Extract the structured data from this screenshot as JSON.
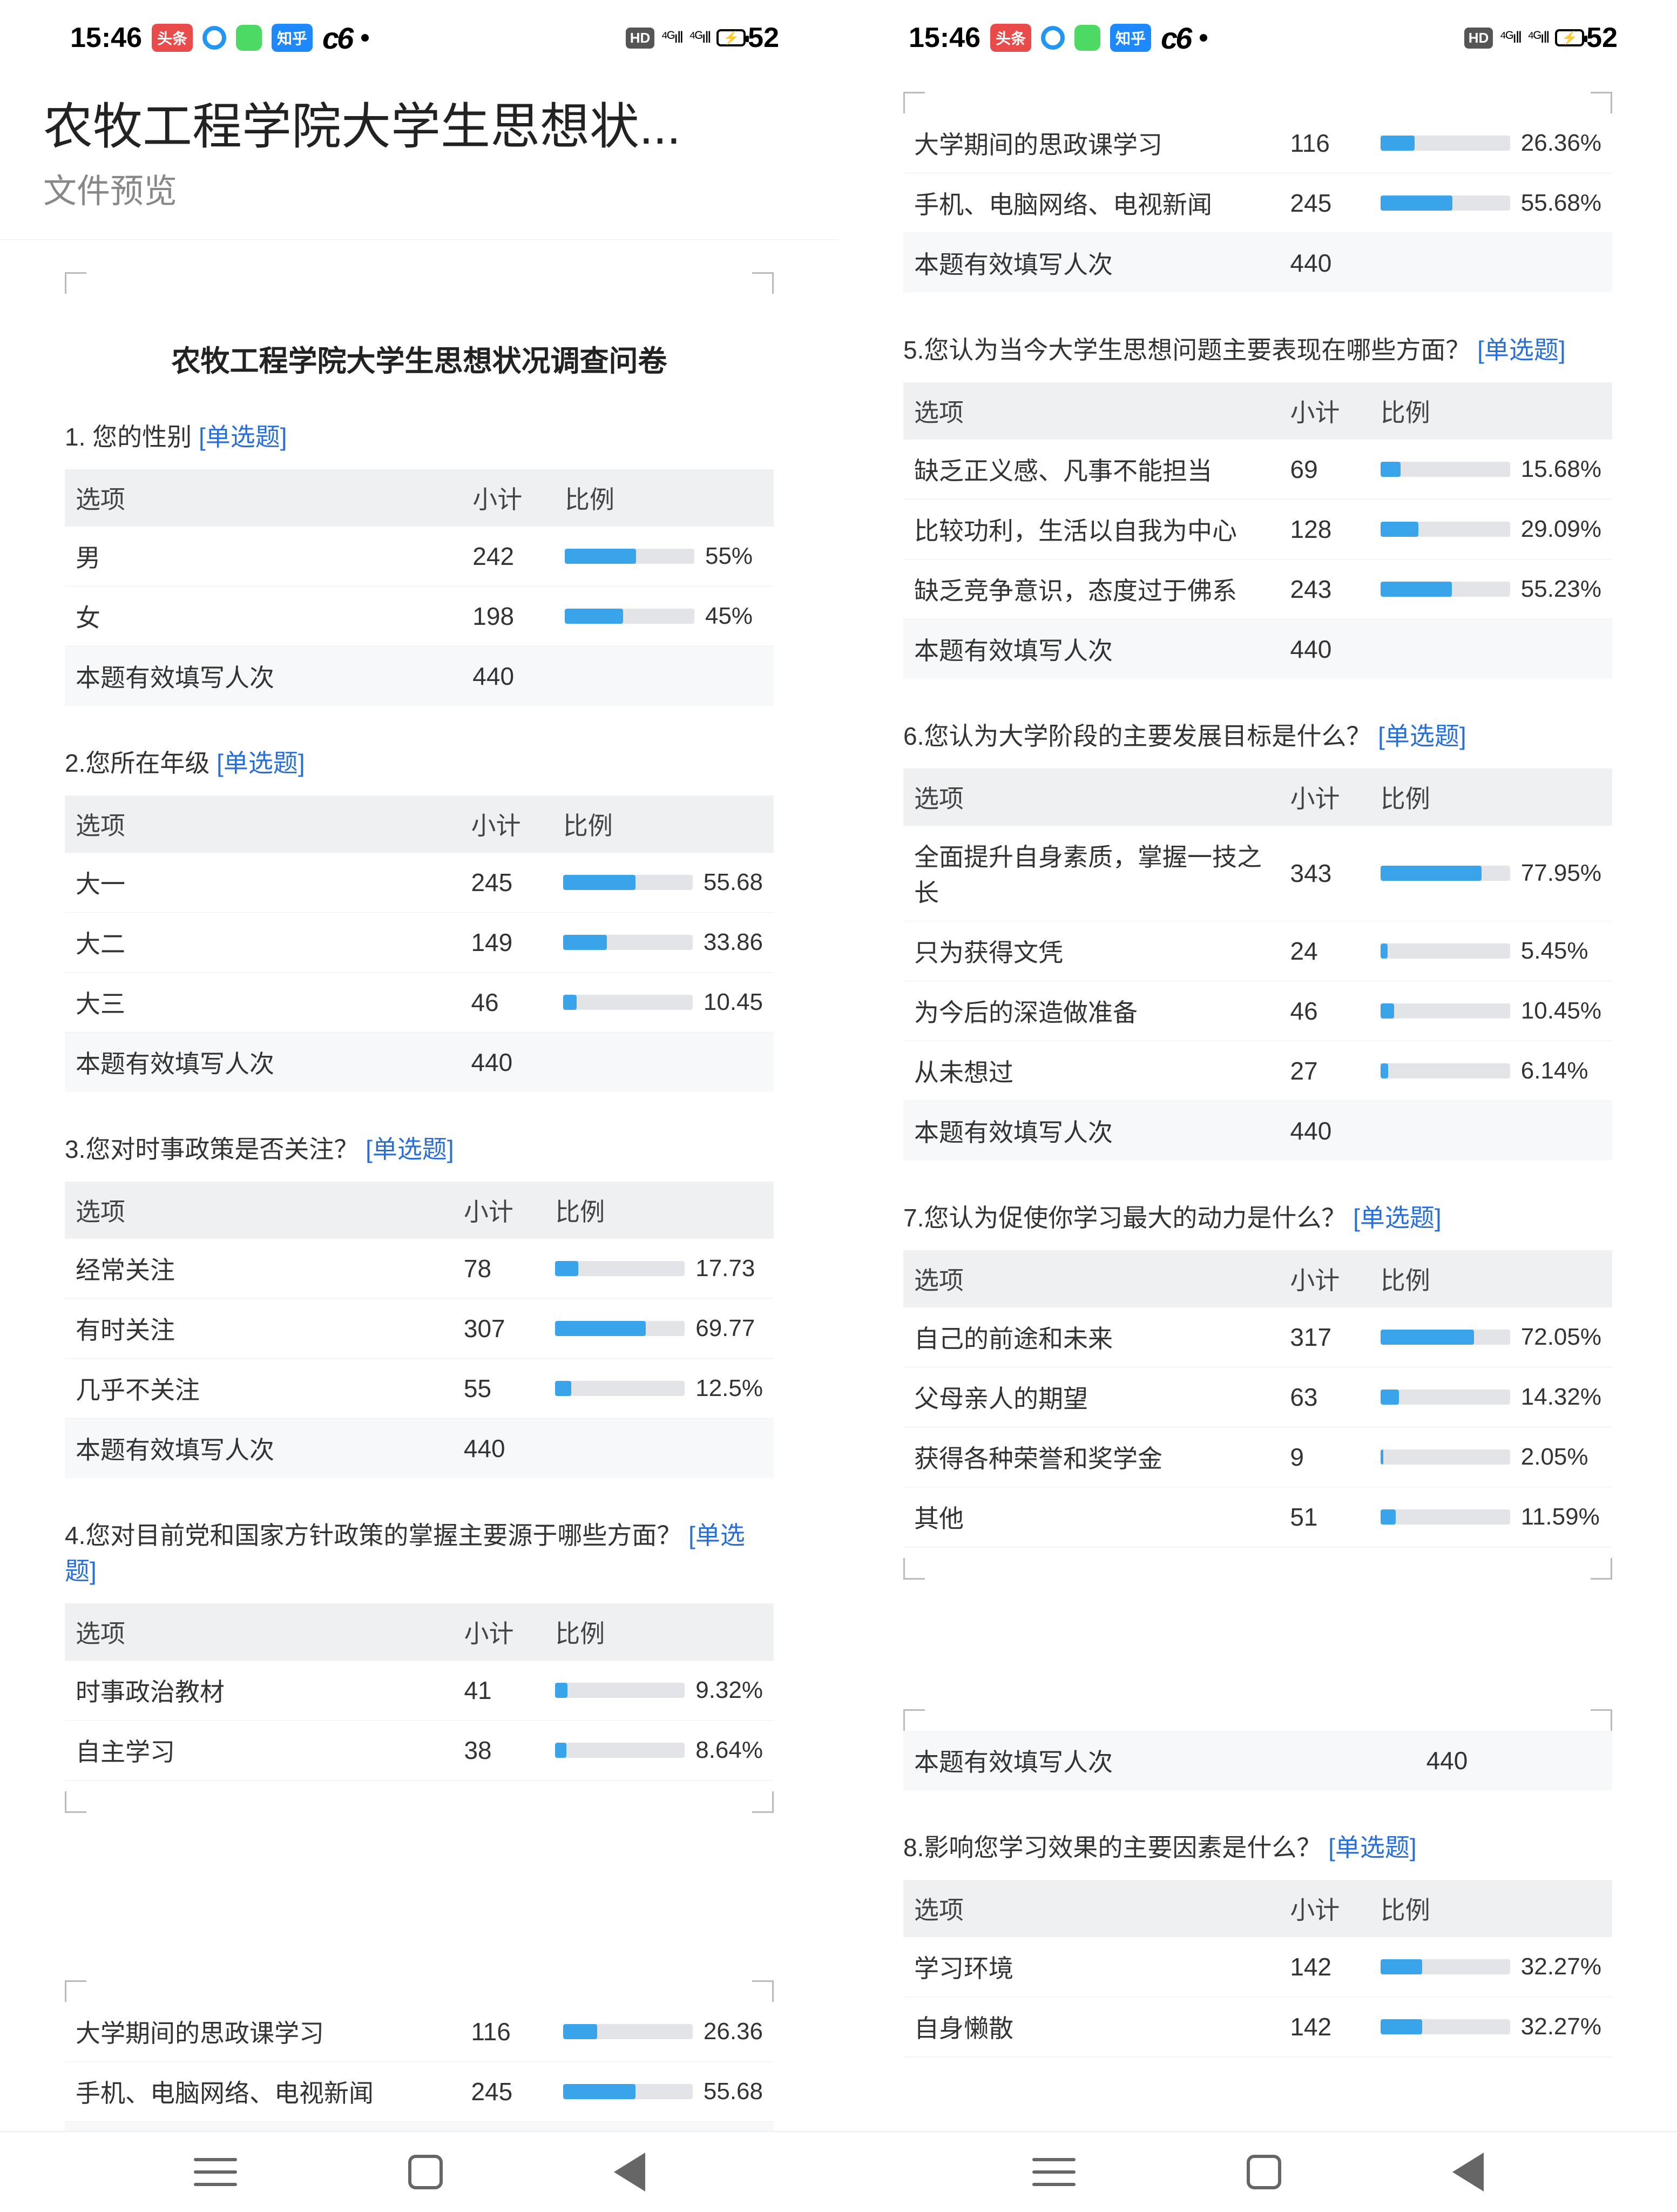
{
  "status": {
    "time": "15:46",
    "battery": "52",
    "hd_label": "HD",
    "net1": "⁴ᴳıll",
    "net2": "⁴ᴳıll",
    "badge_red_text": "头条",
    "badge_blue_text": "知乎"
  },
  "header": {
    "title": "农牧工程学院大学生思想状...",
    "subtitle": "文件预览"
  },
  "survey_title": "农牧工程学院大学生思想状况调查问卷",
  "columns_header": {
    "option": "选项",
    "count": "小计",
    "ratio": "比例"
  },
  "single_choice_tag": "[单选题]",
  "total_label": "本题有效填写人次",
  "bar_color": "#3aa4ea",
  "track_color": "#e2e4e7",
  "header_bg": "#eef0f2",
  "questions": {
    "q1": {
      "title": "1. 您的性别  ",
      "rows": [
        {
          "label": "男",
          "count": 242,
          "pct": "55%",
          "w": 55
        },
        {
          "label": "女",
          "count": 198,
          "pct": "45%",
          "w": 45
        }
      ],
      "total": 440
    },
    "q2": {
      "title": "2.您所在年级  ",
      "rows": [
        {
          "label": "大一",
          "count": 245,
          "pct": "55.68",
          "w": 55.68
        },
        {
          "label": "大二",
          "count": 149,
          "pct": "33.86",
          "w": 33.86
        },
        {
          "label": "大三",
          "count": 46,
          "pct": "10.45",
          "w": 10.45
        }
      ],
      "total": 440
    },
    "q3": {
      "title": "3.您对时事政策是否关注？ ",
      "rows": [
        {
          "label": "经常关注",
          "count": 78,
          "pct": "17.73",
          "w": 17.73
        },
        {
          "label": "有时关注",
          "count": 307,
          "pct": "69.77",
          "w": 69.77
        },
        {
          "label": "几乎不关注",
          "count": 55,
          "pct": "12.5%",
          "w": 12.5
        }
      ],
      "total": 440
    },
    "q4": {
      "title": "4.您对目前党和国家方针政策的掌握主要源于哪些方面？ ",
      "rows": [
        {
          "label": "时事政治教材",
          "count": 41,
          "pct": "9.32%",
          "w": 9.32
        },
        {
          "label": "自主学习",
          "count": 38,
          "pct": "8.64%",
          "w": 8.64
        }
      ]
    },
    "q4b": {
      "rows": [
        {
          "label": "大学期间的思政课学习",
          "count": 116,
          "pct": "26.36",
          "w": 26.36
        },
        {
          "label": "手机、电脑网络、电视新闻",
          "count": 245,
          "pct": "55.68",
          "w": 55.68
        }
      ],
      "total": 440
    },
    "q4c": {
      "rows": [
        {
          "label": "大学期间的思政课学习",
          "count": 116,
          "pct": "26.36%",
          "w": 26.36
        },
        {
          "label": "手机、电脑网络、电视新闻",
          "count": 245,
          "pct": "55.68%",
          "w": 55.68
        }
      ],
      "total": 440
    },
    "q5": {
      "title": "5.您认为当今大学生思想问题主要表现在哪些方面？ ",
      "rows": [
        {
          "label": "缺乏正义感、凡事不能担当",
          "count": 69,
          "pct": "15.68%",
          "w": 15.68
        },
        {
          "label": "比较功利，生活以自我为中心",
          "count": 128,
          "pct": "29.09%",
          "w": 29.09
        },
        {
          "label": "缺乏竞争意识，态度过于佛系",
          "count": 243,
          "pct": "55.23%",
          "w": 55.23
        }
      ],
      "total": 440
    },
    "q6": {
      "title": "6.您认为大学阶段的主要发展目标是什么？ ",
      "rows": [
        {
          "label": "全面提升自身素质，掌握一技之长",
          "count": 343,
          "pct": "77.95%",
          "w": 77.95
        },
        {
          "label": "只为获得文凭",
          "count": 24,
          "pct": "5.45%",
          "w": 5.45
        },
        {
          "label": "为今后的深造做准备",
          "count": 46,
          "pct": "10.45%",
          "w": 10.45
        },
        {
          "label": "从未想过",
          "count": 27,
          "pct": "6.14%",
          "w": 6.14
        }
      ],
      "total": 440
    },
    "q7": {
      "title": "7.您认为促使你学习最大的动力是什么？ ",
      "rows": [
        {
          "label": "自己的前途和未来",
          "count": 317,
          "pct": "72.05%",
          "w": 72.05
        },
        {
          "label": "父母亲人的期望",
          "count": 63,
          "pct": "14.32%",
          "w": 14.32
        },
        {
          "label": "获得各种荣誉和奖学金",
          "count": 9,
          "pct": "2.05%",
          "w": 2.05
        },
        {
          "label": "其他",
          "count": 51,
          "pct": "11.59%",
          "w": 11.59
        }
      ]
    },
    "q7b": {
      "total": 440
    },
    "q8": {
      "title": "8.影响您学习效果的主要因素是什么？ ",
      "rows": [
        {
          "label": "学习环境",
          "count": 142,
          "pct": "32.27%",
          "w": 32.27
        },
        {
          "label": "自身懒散",
          "count": 142,
          "pct": "32.27%",
          "w": 32.27
        }
      ]
    }
  }
}
